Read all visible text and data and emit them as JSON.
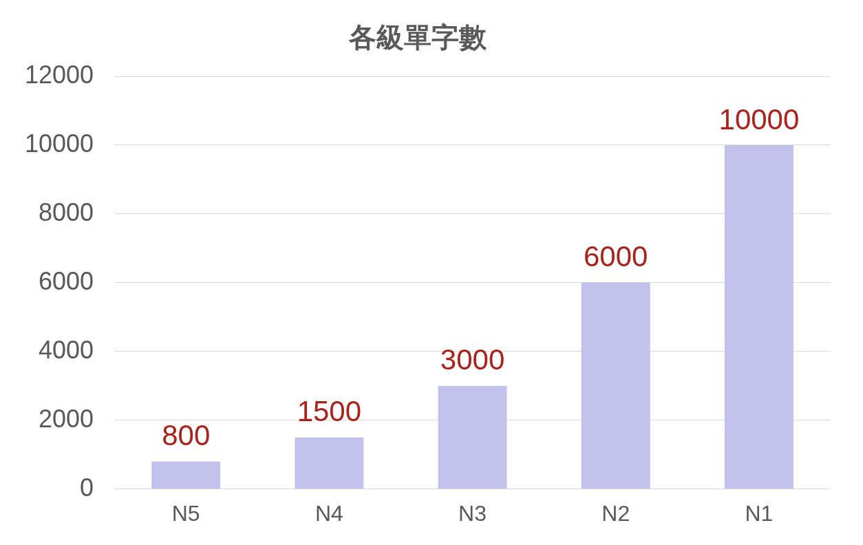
{
  "chart_data": {
    "type": "bar",
    "title": "各級單字數",
    "categories": [
      "N5",
      "N4",
      "N3",
      "N2",
      "N1"
    ],
    "values": [
      800,
      1500,
      3000,
      6000,
      10000
    ],
    "color": "#c1c1ec",
    "ylim": [
      0,
      12000
    ],
    "yticks": [
      0,
      2000,
      4000,
      6000,
      8000,
      10000,
      12000
    ],
    "grid": "y",
    "data_labels": true
  }
}
